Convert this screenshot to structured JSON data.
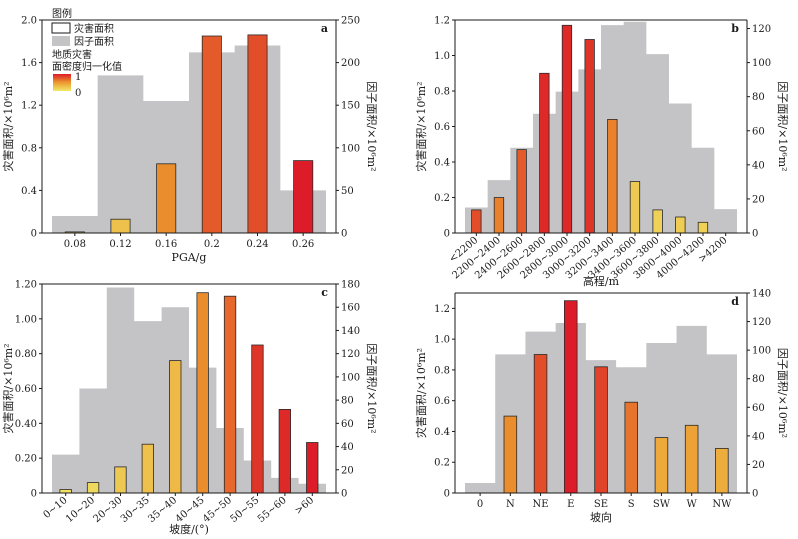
{
  "legend": {
    "title": "图例",
    "disaster_area": "灾害面积",
    "factor_area": "因子面积",
    "colorbar_title_line1": "地质灾害",
    "colorbar_title_line2": "面密度归一化值",
    "colorbar_max": "1",
    "colorbar_min": "0"
  },
  "colors": {
    "factor_fill": "#c4c4c6",
    "bar_low": "#f0e86a",
    "bar_mid": "#ec9a2e",
    "bar_high": "#dc1c28",
    "axis": "#1a1a1a"
  },
  "chart_data": [
    {
      "panel": "a",
      "type": "bar",
      "xlabel": "PGA/g",
      "ylabel": "灾害面积/×10⁶m²",
      "y2label": "因子面积/×10⁶m²",
      "ylim": [
        0,
        2.0
      ],
      "y2lim": [
        0,
        250
      ],
      "yticks": [
        "0",
        "0.4",
        "0.8",
        "1.2",
        "1.6",
        "2.0"
      ],
      "y2ticks": [
        "0",
        "50",
        "100",
        "150",
        "200",
        "250"
      ],
      "categories": [
        "0.08",
        "0.12",
        "0.16",
        "0.2",
        "0.24",
        "0.26"
      ],
      "factor_area": [
        20,
        185,
        155,
        212,
        220,
        50
      ],
      "values": [
        0.01,
        0.13,
        0.65,
        1.85,
        1.86,
        0.68
      ],
      "density": [
        0.05,
        0.25,
        0.55,
        0.75,
        0.8,
        1.0
      ]
    },
    {
      "panel": "b",
      "type": "bar",
      "xlabel": "高程/m",
      "ylabel": "灾害面积/×10⁶m²",
      "y2label": "因子面积/×10⁶m²",
      "ylim": [
        0,
        1.2
      ],
      "y2lim": [
        0,
        125
      ],
      "yticks": [
        "0",
        "0.2",
        "0.4",
        "0.6",
        "0.8",
        "1.0",
        "1.2"
      ],
      "y2ticks": [
        "0",
        "20",
        "40",
        "60",
        "80",
        "100",
        "120"
      ],
      "categories": [
        "<2200",
        "2200~2400",
        "2400~2600",
        "2600~2800",
        "2800~3000",
        "3000~3200",
        "3200~3400",
        "3400~3600",
        "3600~3800",
        "3800~4000",
        "4000~4200",
        ">4200"
      ],
      "factor_area": [
        15,
        31,
        50,
        70,
        83,
        96,
        122,
        124,
        105,
        76,
        50,
        14
      ],
      "values": [
        0.13,
        0.2,
        0.47,
        0.9,
        1.17,
        1.09,
        0.64,
        0.29,
        0.13,
        0.09,
        0.06,
        0.0
      ],
      "density": [
        0.8,
        0.6,
        0.75,
        0.95,
        0.95,
        0.9,
        0.6,
        0.2,
        0.15,
        0.18,
        0.15,
        0.0
      ]
    },
    {
      "panel": "c",
      "type": "bar",
      "xlabel": "坡度/(°)",
      "ylabel": "灾害面积/×10⁶m²",
      "y2label": "因子面积/×10⁶m²",
      "ylim": [
        0,
        1.2
      ],
      "y2lim": [
        0,
        180
      ],
      "yticks": [
        "0",
        "0.20",
        "0.40",
        "0.60",
        "0.80",
        "1.00",
        "1.20"
      ],
      "y2ticks": [
        "0",
        "20",
        "40",
        "60",
        "80",
        "100",
        "120",
        "140",
        "160",
        "180"
      ],
      "categories": [
        "0~10",
        "10~20",
        "20~30",
        "30~35",
        "35~40",
        "40~45",
        "45~50",
        "50~55",
        "55~60",
        ">60"
      ],
      "factor_area": [
        33,
        90,
        177,
        148,
        160,
        108,
        56,
        28,
        13,
        8
      ],
      "values": [
        0.02,
        0.06,
        0.15,
        0.28,
        0.76,
        1.15,
        1.13,
        0.85,
        0.48,
        0.29
      ],
      "density": [
        0.05,
        0.1,
        0.2,
        0.25,
        0.3,
        0.55,
        0.7,
        0.9,
        0.95,
        1.0
      ]
    },
    {
      "panel": "d",
      "type": "bar",
      "xlabel": "坡向",
      "ylabel": "灾害面积/×10⁶m²",
      "y2label": "因子面积/×10⁶m²",
      "ylim": [
        0,
        1.3
      ],
      "y2lim": [
        0,
        140
      ],
      "yticks": [
        "0",
        "0.2",
        "0.4",
        "0.6",
        "0.8",
        "1.0",
        "1.2"
      ],
      "y2ticks": [
        "0",
        "20",
        "40",
        "60",
        "80",
        "100",
        "120",
        "140"
      ],
      "categories": [
        "0",
        "N",
        "NE",
        "E",
        "SE",
        "S",
        "SW",
        "W",
        "NW"
      ],
      "factor_area": [
        7,
        97,
        113,
        119,
        93,
        88,
        105,
        117,
        97
      ],
      "values": [
        0.0,
        0.5,
        0.9,
        1.25,
        0.82,
        0.59,
        0.36,
        0.44,
        0.29
      ],
      "density": [
        0.0,
        0.55,
        0.8,
        1.0,
        0.85,
        0.65,
        0.4,
        0.45,
        0.38
      ]
    }
  ]
}
